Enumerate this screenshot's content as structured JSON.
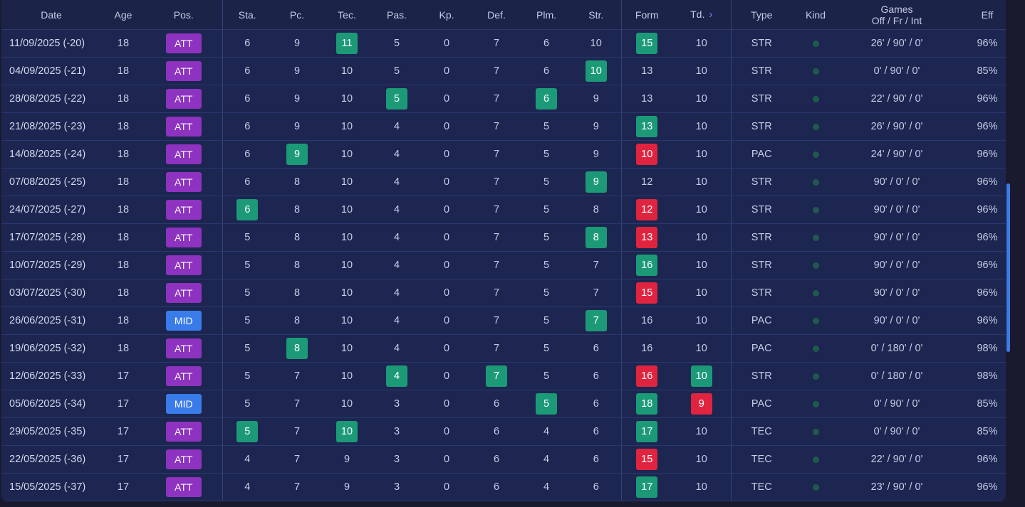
{
  "headers": {
    "date": "Date",
    "age": "Age",
    "pos": "Pos.",
    "sta": "Sta.",
    "pc": "Pc.",
    "tec": "Tec.",
    "pas": "Pas.",
    "kp": "Kp.",
    "def": "Def.",
    "plm": "Plm.",
    "str": "Str.",
    "form": "Form",
    "td": "Td.",
    "td_icon": "›",
    "type": "Type",
    "kind": "Kind",
    "games_line1": "Games",
    "games_line2": "Off / Fr / Int",
    "eff": "Eff"
  },
  "rows": [
    {
      "date": "11/09/2025 (-20)",
      "age": "18",
      "pos": "ATT",
      "sta": "6",
      "pc": "9",
      "tec": "11",
      "pas": "5",
      "kp": "0",
      "def": "7",
      "plm": "6",
      "str": "10",
      "form": "15",
      "td": "10",
      "type": "STR",
      "games": "26' / 90' / 0'",
      "eff": "96%",
      "hl": {
        "tec": "g",
        "form": "g"
      }
    },
    {
      "date": "04/09/2025 (-21)",
      "age": "18",
      "pos": "ATT",
      "sta": "6",
      "pc": "9",
      "tec": "10",
      "pas": "5",
      "kp": "0",
      "def": "7",
      "plm": "6",
      "str": "10",
      "form": "13",
      "td": "10",
      "type": "STR",
      "games": "0' / 90' / 0'",
      "eff": "85%",
      "hl": {
        "str": "g"
      }
    },
    {
      "date": "28/08/2025 (-22)",
      "age": "18",
      "pos": "ATT",
      "sta": "6",
      "pc": "9",
      "tec": "10",
      "pas": "5",
      "kp": "0",
      "def": "7",
      "plm": "6",
      "str": "9",
      "form": "13",
      "td": "10",
      "type": "STR",
      "games": "22' / 90' / 0'",
      "eff": "96%",
      "hl": {
        "pas": "g",
        "plm": "g"
      }
    },
    {
      "date": "21/08/2025 (-23)",
      "age": "18",
      "pos": "ATT",
      "sta": "6",
      "pc": "9",
      "tec": "10",
      "pas": "4",
      "kp": "0",
      "def": "7",
      "plm": "5",
      "str": "9",
      "form": "13",
      "td": "10",
      "type": "STR",
      "games": "26' / 90' / 0'",
      "eff": "96%",
      "hl": {
        "form": "g"
      }
    },
    {
      "date": "14/08/2025 (-24)",
      "age": "18",
      "pos": "ATT",
      "sta": "6",
      "pc": "9",
      "tec": "10",
      "pas": "4",
      "kp": "0",
      "def": "7",
      "plm": "5",
      "str": "9",
      "form": "10",
      "td": "10",
      "type": "PAC",
      "games": "24' / 90' / 0'",
      "eff": "96%",
      "hl": {
        "pc": "g",
        "form": "r"
      }
    },
    {
      "date": "07/08/2025 (-25)",
      "age": "18",
      "pos": "ATT",
      "sta": "6",
      "pc": "8",
      "tec": "10",
      "pas": "4",
      "kp": "0",
      "def": "7",
      "plm": "5",
      "str": "9",
      "form": "12",
      "td": "10",
      "type": "STR",
      "games": "90' / 0' / 0'",
      "eff": "96%",
      "hl": {
        "str": "g"
      }
    },
    {
      "date": "24/07/2025 (-27)",
      "age": "18",
      "pos": "ATT",
      "sta": "6",
      "pc": "8",
      "tec": "10",
      "pas": "4",
      "kp": "0",
      "def": "7",
      "plm": "5",
      "str": "8",
      "form": "12",
      "td": "10",
      "type": "STR",
      "games": "90' / 0' / 0'",
      "eff": "96%",
      "hl": {
        "sta": "g",
        "form": "r"
      }
    },
    {
      "date": "17/07/2025 (-28)",
      "age": "18",
      "pos": "ATT",
      "sta": "5",
      "pc": "8",
      "tec": "10",
      "pas": "4",
      "kp": "0",
      "def": "7",
      "plm": "5",
      "str": "8",
      "form": "13",
      "td": "10",
      "type": "STR",
      "games": "90' / 0' / 0'",
      "eff": "96%",
      "hl": {
        "str": "g",
        "form": "r"
      }
    },
    {
      "date": "10/07/2025 (-29)",
      "age": "18",
      "pos": "ATT",
      "sta": "5",
      "pc": "8",
      "tec": "10",
      "pas": "4",
      "kp": "0",
      "def": "7",
      "plm": "5",
      "str": "7",
      "form": "16",
      "td": "10",
      "type": "STR",
      "games": "90' / 0' / 0'",
      "eff": "96%",
      "hl": {
        "form": "g"
      }
    },
    {
      "date": "03/07/2025 (-30)",
      "age": "18",
      "pos": "ATT",
      "sta": "5",
      "pc": "8",
      "tec": "10",
      "pas": "4",
      "kp": "0",
      "def": "7",
      "plm": "5",
      "str": "7",
      "form": "15",
      "td": "10",
      "type": "STR",
      "games": "90' / 0' / 0'",
      "eff": "96%",
      "hl": {
        "form": "r"
      }
    },
    {
      "date": "26/06/2025 (-31)",
      "age": "18",
      "pos": "MID",
      "sta": "5",
      "pc": "8",
      "tec": "10",
      "pas": "4",
      "kp": "0",
      "def": "7",
      "plm": "5",
      "str": "7",
      "form": "16",
      "td": "10",
      "type": "PAC",
      "games": "90' / 0' / 0'",
      "eff": "96%",
      "hl": {
        "str": "g"
      }
    },
    {
      "date": "19/06/2025 (-32)",
      "age": "18",
      "pos": "ATT",
      "sta": "5",
      "pc": "8",
      "tec": "10",
      "pas": "4",
      "kp": "0",
      "def": "7",
      "plm": "5",
      "str": "6",
      "form": "16",
      "td": "10",
      "type": "PAC",
      "games": "0' / 180' / 0'",
      "eff": "98%",
      "hl": {
        "pc": "g"
      }
    },
    {
      "date": "12/06/2025 (-33)",
      "age": "17",
      "pos": "ATT",
      "sta": "5",
      "pc": "7",
      "tec": "10",
      "pas": "4",
      "kp": "0",
      "def": "7",
      "plm": "5",
      "str": "6",
      "form": "16",
      "td": "10",
      "type": "STR",
      "games": "0' / 180' / 0'",
      "eff": "98%",
      "hl": {
        "pas": "g",
        "def": "g",
        "form": "r",
        "td": "g"
      }
    },
    {
      "date": "05/06/2025 (-34)",
      "age": "17",
      "pos": "MID",
      "sta": "5",
      "pc": "7",
      "tec": "10",
      "pas": "3",
      "kp": "0",
      "def": "6",
      "plm": "5",
      "str": "6",
      "form": "18",
      "td": "9",
      "type": "PAC",
      "games": "0' / 90' / 0'",
      "eff": "85%",
      "hl": {
        "plm": "g",
        "form": "g",
        "td": "r"
      }
    },
    {
      "date": "29/05/2025 (-35)",
      "age": "17",
      "pos": "ATT",
      "sta": "5",
      "pc": "7",
      "tec": "10",
      "pas": "3",
      "kp": "0",
      "def": "6",
      "plm": "4",
      "str": "6",
      "form": "17",
      "td": "10",
      "type": "TEC",
      "games": "0' / 90' / 0'",
      "eff": "85%",
      "hl": {
        "sta": "g",
        "tec": "g",
        "form": "g"
      }
    },
    {
      "date": "22/05/2025 (-36)",
      "age": "17",
      "pos": "ATT",
      "sta": "4",
      "pc": "7",
      "tec": "9",
      "pas": "3",
      "kp": "0",
      "def": "6",
      "plm": "4",
      "str": "6",
      "form": "15",
      "td": "10",
      "type": "TEC",
      "games": "22' / 90' / 0'",
      "eff": "96%",
      "hl": {
        "form": "r"
      }
    },
    {
      "date": "15/05/2025 (-37)",
      "age": "17",
      "pos": "ATT",
      "sta": "4",
      "pc": "7",
      "tec": "9",
      "pas": "3",
      "kp": "0",
      "def": "6",
      "plm": "4",
      "str": "6",
      "form": "17",
      "td": "10",
      "type": "TEC",
      "games": "23' / 90' / 0'",
      "eff": "96%",
      "hl": {
        "form": "g"
      }
    }
  ],
  "colors": {
    "att": "#8e32c0",
    "mid": "#3a7bea",
    "highlight_green": "#1c9a78",
    "highlight_red": "#e0243f",
    "kind_dot": "#1f5a4d",
    "scrollbar": "#3f7be8"
  }
}
